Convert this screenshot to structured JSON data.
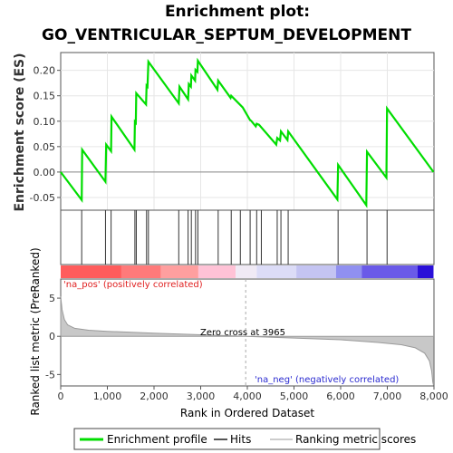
{
  "chart_data": {
    "type": "line",
    "title_line1": "Enrichment plot:",
    "title_line2": "GO_VENTRICULAR_SEPTUM_DEVELOPMENT",
    "es_panel": {
      "ylabel": "Enrichment score (ES)",
      "xlim": [
        0,
        8000
      ],
      "ylim": [
        -0.075,
        0.235
      ],
      "yticks": [
        -0.05,
        0.0,
        0.05,
        0.1,
        0.15,
        0.2
      ],
      "ytick_labels": [
        "-0.05",
        "0.00",
        "0.05",
        "0.10",
        "0.15",
        "0.20"
      ],
      "series_name": "Enrichment profile",
      "color": "#00dd00",
      "points": [
        [
          0,
          0.0
        ],
        [
          450,
          -0.055
        ],
        [
          460,
          0.044
        ],
        [
          960,
          -0.019
        ],
        [
          975,
          0.054
        ],
        [
          1080,
          0.041
        ],
        [
          1090,
          0.109
        ],
        [
          1580,
          0.044
        ],
        [
          1590,
          0.099
        ],
        [
          1610,
          0.097
        ],
        [
          1620,
          0.155
        ],
        [
          1830,
          0.133
        ],
        [
          1840,
          0.17
        ],
        [
          1860,
          0.168
        ],
        [
          1880,
          0.217
        ],
        [
          2530,
          0.135
        ],
        [
          2545,
          0.168
        ],
        [
          2730,
          0.143
        ],
        [
          2745,
          0.173
        ],
        [
          2790,
          0.168
        ],
        [
          2800,
          0.19
        ],
        [
          2880,
          0.18
        ],
        [
          2890,
          0.201
        ],
        [
          2930,
          0.197
        ],
        [
          2940,
          0.219
        ],
        [
          3360,
          0.162
        ],
        [
          3375,
          0.18
        ],
        [
          3640,
          0.146
        ],
        [
          3655,
          0.15
        ],
        [
          3900,
          0.127
        ],
        [
          4060,
          0.102
        ],
        [
          4080,
          0.101
        ],
        [
          4180,
          0.09
        ],
        [
          4200,
          0.095
        ],
        [
          4250,
          0.093
        ],
        [
          4620,
          0.054
        ],
        [
          4640,
          0.067
        ],
        [
          4700,
          0.062
        ],
        [
          4720,
          0.08
        ],
        [
          4860,
          0.063
        ],
        [
          4875,
          0.08
        ],
        [
          5930,
          -0.054
        ],
        [
          5945,
          0.014
        ],
        [
          6550,
          -0.065
        ],
        [
          6565,
          0.04
        ],
        [
          6980,
          -0.011
        ],
        [
          6995,
          0.125
        ],
        [
          7990,
          0.0
        ]
      ]
    },
    "hits_panel": {
      "hit_positions": [
        450,
        960,
        1080,
        1590,
        1620,
        1840,
        1880,
        2530,
        2730,
        2800,
        2890,
        2940,
        3375,
        3655,
        3850,
        4060,
        4200,
        4300,
        4640,
        4720,
        4875,
        5945,
        6565,
        6995
      ]
    },
    "rank_panel": {
      "ylabel": "Ranked list metric (PreRanked)",
      "xlabel": "Rank in Ordered Dataset",
      "xlim": [
        0,
        8000
      ],
      "ylim": [
        -6.5,
        7.5
      ],
      "yticks": [
        -5,
        0,
        5
      ],
      "ytick_labels": [
        "-5",
        "0",
        "5"
      ],
      "xticks": [
        0,
        1000,
        2000,
        3000,
        4000,
        5000,
        6000,
        7000,
        8000
      ],
      "xtick_labels": [
        "0",
        "1,000",
        "2,000",
        "3,000",
        "4,000",
        "5,000",
        "6,000",
        "7,000",
        "8,000"
      ],
      "zero_cross": 3965,
      "zero_cross_label": "Zero cross at 3965",
      "pos_label": "'na_pos' (positively correlated)",
      "neg_label": "'na_neg' (negatively correlated)",
      "curve": [
        [
          0,
          5.2
        ],
        [
          30,
          3.5
        ],
        [
          80,
          2.2
        ],
        [
          150,
          1.5
        ],
        [
          300,
          1.05
        ],
        [
          600,
          0.8
        ],
        [
          1000,
          0.65
        ],
        [
          2000,
          0.42
        ],
        [
          3000,
          0.2
        ],
        [
          3965,
          0.0
        ],
        [
          5000,
          -0.22
        ],
        [
          6000,
          -0.45
        ],
        [
          6800,
          -0.8
        ],
        [
          7300,
          -1.1
        ],
        [
          7600,
          -1.5
        ],
        [
          7800,
          -2.2
        ],
        [
          7900,
          -3.2
        ],
        [
          7950,
          -4.5
        ],
        [
          7975,
          -6.0
        ],
        [
          7990,
          -6.4
        ]
      ]
    },
    "colorbar": {
      "segments": [
        {
          "from": 0,
          "to": 1300,
          "color": "#ff5c5c"
        },
        {
          "from": 1300,
          "to": 2150,
          "color": "#ff7a7a"
        },
        {
          "from": 2150,
          "to": 2950,
          "color": "#ff9f9f"
        },
        {
          "from": 2950,
          "to": 3750,
          "color": "#ffc2d6"
        },
        {
          "from": 3750,
          "to": 4200,
          "color": "#f0eaf5"
        },
        {
          "from": 4200,
          "to": 5050,
          "color": "#dcdcf7"
        },
        {
          "from": 5050,
          "to": 5900,
          "color": "#c4c4f2"
        },
        {
          "from": 5900,
          "to": 6450,
          "color": "#9090f0"
        },
        {
          "from": 6450,
          "to": 7650,
          "color": "#6a5ae8"
        },
        {
          "from": 7650,
          "to": 7990,
          "color": "#2a10d8"
        }
      ]
    },
    "legend": [
      {
        "label": "Enrichment profile",
        "color": "#00dd00",
        "kind": "line-thick"
      },
      {
        "label": "Hits",
        "color": "#555555",
        "kind": "line"
      },
      {
        "label": "Ranking metric scores",
        "color": "#cccccc",
        "kind": "line"
      }
    ]
  }
}
